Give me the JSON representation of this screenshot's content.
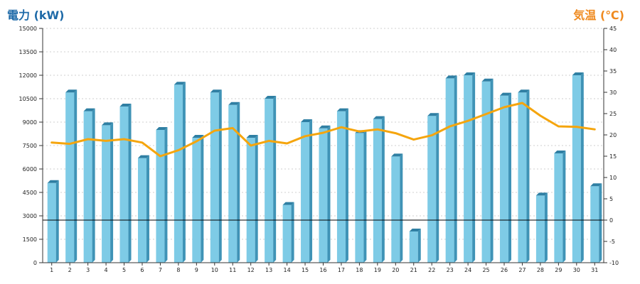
{
  "chart_data": {
    "type": "bar",
    "y_left_label": "電力 (kW)",
    "y_right_label": "気温 (℃)",
    "categories": [
      "1",
      "2",
      "3",
      "4",
      "5",
      "6",
      "7",
      "8",
      "9",
      "10",
      "11",
      "12",
      "13",
      "14",
      "15",
      "16",
      "17",
      "18",
      "19",
      "20",
      "21",
      "22",
      "23",
      "24",
      "25",
      "26",
      "27",
      "28",
      "29",
      "30",
      "31"
    ],
    "y_left_ticks": [
      "0",
      "1500",
      "3000",
      "4500",
      "6000",
      "7500",
      "9000",
      "10500",
      "12000",
      "13500",
      "15000"
    ],
    "y_right_ticks": [
      "-10",
      "-5",
      "0",
      "5",
      "10",
      "15",
      "20",
      "25",
      "30",
      "35",
      "40",
      "45"
    ],
    "ylim_left": [
      0,
      15000
    ],
    "ylim_right": [
      -10,
      45
    ],
    "grid": true,
    "reference_line": {
      "axis": "right",
      "value": 0
    },
    "series": [
      {
        "axis": "left",
        "type": "bar",
        "color": "#7ecbe6",
        "values": [
          5100,
          10900,
          9700,
          8800,
          10000,
          6700,
          8500,
          11400,
          8000,
          10900,
          10100,
          8000,
          10500,
          3700,
          9000,
          8600,
          9700,
          8300,
          9200,
          6800,
          2000,
          9400,
          11800,
          12000,
          11600,
          10700,
          10900,
          4300,
          7000,
          12000,
          4900
        ]
      },
      {
        "axis": "right",
        "type": "line",
        "color": "#f5a50d",
        "values": [
          18.2,
          17.9,
          19.0,
          18.6,
          19.0,
          18.2,
          15.0,
          16.4,
          18.5,
          21.0,
          21.6,
          17.5,
          18.6,
          18.0,
          19.7,
          20.5,
          21.8,
          20.8,
          21.3,
          20.4,
          18.9,
          19.9,
          22.0,
          23.3,
          24.9,
          26.5,
          27.5,
          24.5,
          22.0,
          21.9,
          21.3
        ]
      }
    ]
  }
}
